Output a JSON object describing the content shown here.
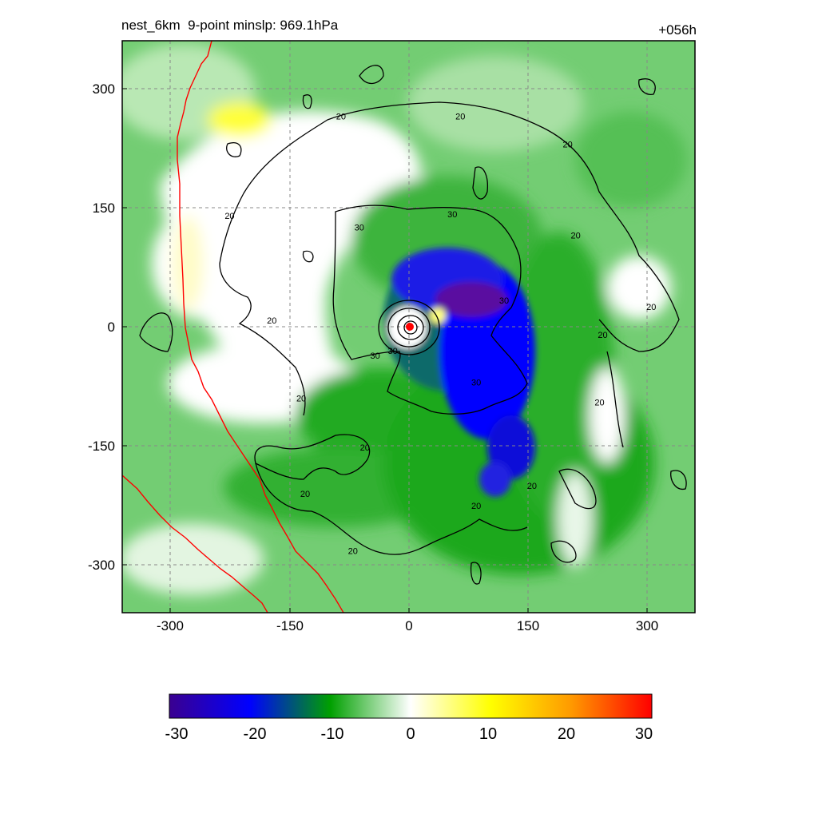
{
  "header": {
    "title": "nest_6km  9-point minslp: 969.1hPa",
    "forecast_hour": "+056h"
  },
  "map": {
    "x_ticks": [
      "-300",
      "-150",
      "0",
      "150",
      "300"
    ],
    "y_ticks": [
      "300",
      "150",
      "0",
      "-150",
      "-300"
    ],
    "x_range": [
      -360,
      360
    ],
    "y_range": [
      -360,
      360
    ],
    "grid": "dashed",
    "coastline_color": "#ff0000",
    "contour_color": "#000000",
    "contour_labels": [
      {
        "value": "20",
        "x": -85,
        "y": 265
      },
      {
        "value": "20",
        "x": 65,
        "y": 265
      },
      {
        "value": "20",
        "x": 200,
        "y": 230
      },
      {
        "value": "20",
        "x": -225,
        "y": 140
      },
      {
        "value": "30",
        "x": 55,
        "y": 142
      },
      {
        "value": "30",
        "x": -62,
        "y": 125
      },
      {
        "value": "20",
        "x": 210,
        "y": 115
      },
      {
        "value": "30",
        "x": 120,
        "y": 33
      },
      {
        "value": "20",
        "x": 305,
        "y": 25
      },
      {
        "value": "20",
        "x": -172,
        "y": 8
      },
      {
        "value": "20",
        "x": 244,
        "y": -10
      },
      {
        "value": "30",
        "x": -20,
        "y": -30
      },
      {
        "value": "30",
        "x": -42,
        "y": -36
      },
      {
        "value": "30",
        "x": 85,
        "y": -70
      },
      {
        "value": "20",
        "x": -135,
        "y": -90
      },
      {
        "value": "20",
        "x": 240,
        "y": -95
      },
      {
        "value": "20",
        "x": -55,
        "y": -152
      },
      {
        "value": "20",
        "x": -130,
        "y": -210
      },
      {
        "value": "20",
        "x": 155,
        "y": -200
      },
      {
        "value": "20",
        "x": 85,
        "y": -225
      },
      {
        "value": "20",
        "x": -70,
        "y": -282
      }
    ]
  },
  "colorbar": {
    "labels": [
      "-30",
      "-20",
      "-10",
      "0",
      "10",
      "20",
      "30"
    ],
    "range": [
      -30,
      30
    ],
    "stops": [
      "#3a0090",
      "#0000ff",
      "#00a000",
      "#ffffff",
      "#ffff00",
      "#ff9900",
      "#ff0000"
    ]
  }
}
